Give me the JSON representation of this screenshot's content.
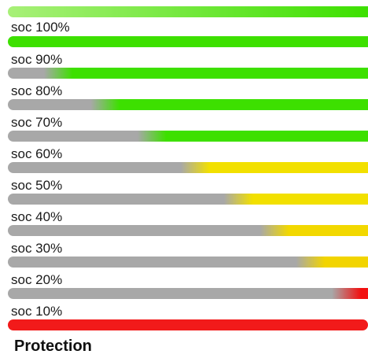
{
  "levels": [
    {
      "label": "",
      "gray_fraction": 0.0,
      "color": "#3de000"
    },
    {
      "label": "soc 100%",
      "gray_fraction": 0.0,
      "color": "#3de000"
    },
    {
      "label": "soc 90%",
      "gray_fraction": 0.1,
      "color": "#3de000"
    },
    {
      "label": "soc 80%",
      "gray_fraction": 0.23,
      "color": "#3de000"
    },
    {
      "label": "soc 70%",
      "gray_fraction": 0.36,
      "color": "#3de000"
    },
    {
      "label": "soc 60%",
      "gray_fraction": 0.48,
      "color": "#f2e000"
    },
    {
      "label": "soc 50%",
      "gray_fraction": 0.6,
      "color": "#f2e000"
    },
    {
      "label": "soc 40%",
      "gray_fraction": 0.7,
      "color": "#f2d800"
    },
    {
      "label": "soc 30%",
      "gray_fraction": 0.8,
      "color": "#f2d400"
    },
    {
      "label": "soc 20%",
      "gray_fraction": 0.9,
      "color": "#f21010"
    },
    {
      "label": "soc 10%",
      "gray_fraction": 0.0,
      "color": "#f21a1a"
    }
  ],
  "gray_color": "#a8a8a8",
  "top_bar_start_color": "#a8f078",
  "footer_label": "Protection"
}
